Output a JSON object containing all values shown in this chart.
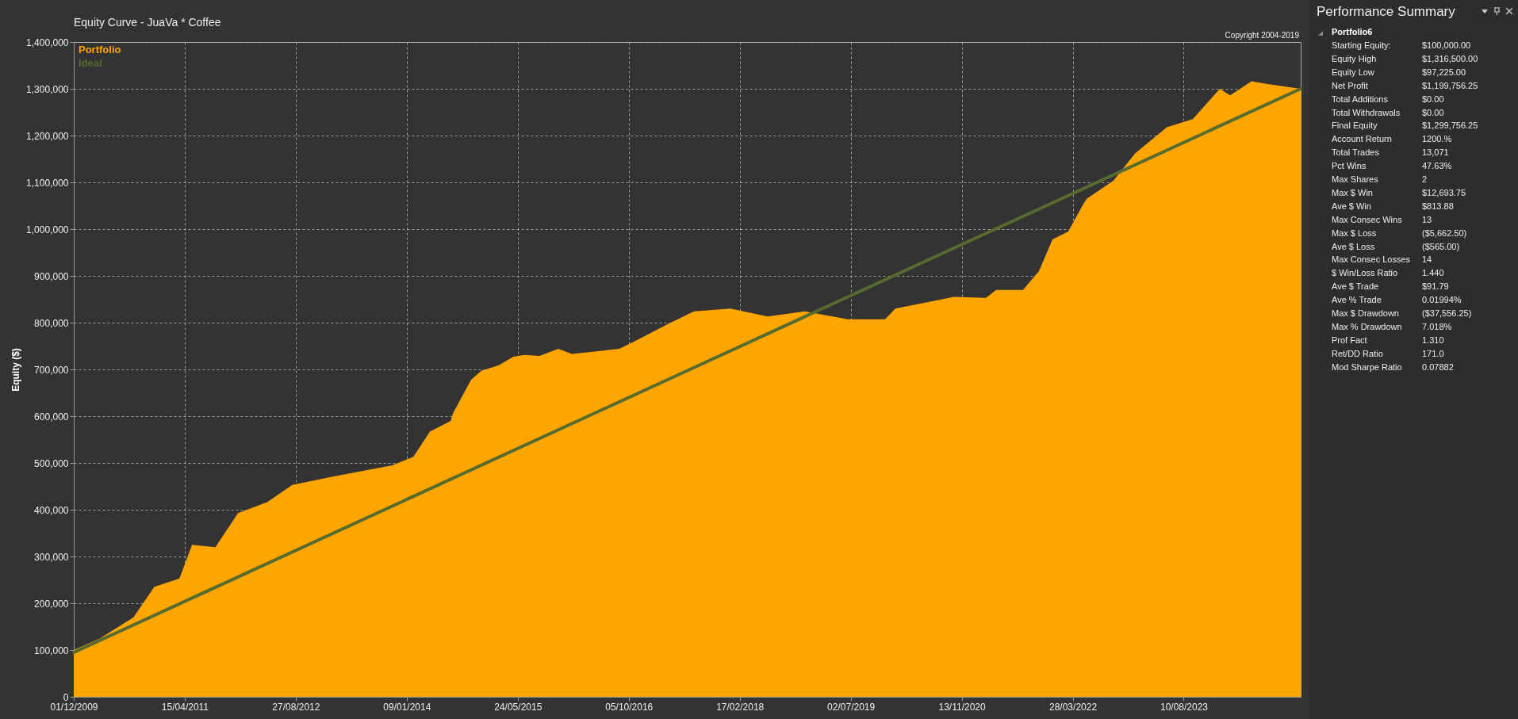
{
  "chart_data": [
    {
      "type": "area",
      "title": "Equity Curve - JuaVa * Coffee",
      "ylabel": "Equity ($)",
      "annotations": [
        "Copyright 2004-2019"
      ],
      "xlim": [
        "2009-12-01",
        "2025-01-18"
      ],
      "xticks": [
        {
          "value": "2009-12-01",
          "label": "01/12/2009"
        },
        {
          "value": "2011-04-15",
          "label": "15/04/2011"
        },
        {
          "value": "2012-08-27",
          "label": "27/08/2012"
        },
        {
          "value": "2014-01-09",
          "label": "09/01/2014"
        },
        {
          "value": "2015-05-24",
          "label": "24/05/2015"
        },
        {
          "value": "2016-10-05",
          "label": "05/10/2016"
        },
        {
          "value": "2018-02-17",
          "label": "17/02/2018"
        },
        {
          "value": "2019-07-02",
          "label": "02/07/2019"
        },
        {
          "value": "2020-11-13",
          "label": "13/11/2020"
        },
        {
          "value": "2022-03-28",
          "label": "28/03/2022"
        },
        {
          "value": "2023-08-10",
          "label": "10/08/2023"
        }
      ],
      "ylim": [
        0,
        1400000
      ],
      "yticks": [
        0,
        {
          "value": 100000,
          "label": "100,000"
        },
        {
          "value": 200000,
          "label": "200,000"
        },
        {
          "value": 300000,
          "label": "300,000"
        },
        {
          "value": 400000,
          "label": "400,000"
        },
        {
          "value": 500000,
          "label": "500,000"
        },
        {
          "value": 600000,
          "label": "600,000"
        },
        {
          "value": 700000,
          "label": "700,000"
        },
        {
          "value": 800000,
          "label": "800,000"
        },
        {
          "value": 900000,
          "label": "900,000"
        },
        {
          "value": 1000000,
          "label": "1,000,000"
        },
        {
          "value": 1100000,
          "label": "1,100,000"
        },
        {
          "value": 1200000,
          "label": "1,200,000"
        },
        {
          "value": 1300000,
          "label": "1,300,000"
        },
        {
          "value": 1400000,
          "label": "1,400,000"
        }
      ],
      "grid": true,
      "legend": "top left",
      "series": [
        {
          "name": "Portfolio",
          "type": "area",
          "color": "#ffa500",
          "x": [
            "2009-12-01",
            "2010-03-30",
            "2010-08-27",
            "2010-11-29",
            "2011-03-22",
            "2011-05-18",
            "2011-08-31",
            "2011-12-11",
            "2012-04-20",
            "2012-08-11",
            "2013-02-14",
            "2013-11-05",
            "2014-02-08",
            "2014-04-23",
            "2014-07-26",
            "2014-08-05",
            "2014-10-26",
            "2014-12-11",
            "2015-02-28",
            "2015-05-04",
            "2015-06-22",
            "2015-08-30",
            "2015-11-23",
            "2016-01-23",
            "2016-08-24",
            "2016-11-04",
            "2017-03-27",
            "2017-07-26",
            "2018-01-06",
            "2018-06-23",
            "2018-12-08",
            "2019-06-19",
            "2019-12-04",
            "2020-01-19",
            "2020-10-09",
            "2021-03-02",
            "2021-04-17",
            "2021-08-16",
            "2021-10-27",
            "2021-12-27",
            "2022-03-08",
            "2022-05-08",
            "2022-05-30",
            "2022-09-28",
            "2023-01-03",
            "2023-05-26",
            "2023-09-20",
            "2024-01-20",
            "2024-03-06",
            "2024-06-11",
            "2024-08-21",
            "2025-01-18"
          ],
          "values": [
            100000,
            125000,
            170000,
            235000,
            253000,
            325000,
            320000,
            393000,
            416000,
            453000,
            471000,
            495000,
            513000,
            567000,
            590000,
            606000,
            678000,
            697000,
            709000,
            727000,
            731000,
            729000,
            744000,
            733000,
            744000,
            761000,
            796000,
            824000,
            830000,
            813000,
            824000,
            807000,
            807000,
            830000,
            855000,
            853000,
            870000,
            870000,
            910000,
            978000,
            995000,
            1048000,
            1065000,
            1104000,
            1162000,
            1218000,
            1235000,
            1300000,
            1286000,
            1316000,
            1310000,
            1300000
          ]
        },
        {
          "name": "Ideal",
          "type": "line",
          "color": "#556b2f",
          "x": [
            "2009-12-01",
            "2017-06-01",
            "2025-01-18"
          ],
          "values": [
            95000,
            692000,
            1300000
          ]
        }
      ]
    },
    {
      "type": "other",
      "title": "Performance Summary",
      "subtitle": "Portfolio6",
      "annotations": [
        "Starting Equity:",
        "$100,000.00",
        "Equity High",
        "$1,316,500.00",
        "Equity Low",
        "$97,225.00",
        "Net Profit",
        "$1,199,756.25",
        "Total Additions",
        "$0.00",
        "Total Withdrawals",
        "$0.00",
        "Final Equity",
        "$1,299,756.25",
        "Account Return",
        "1200.%",
        "Total Trades",
        "13,071",
        "Pct Wins",
        "47.63%",
        "Max Shares",
        "2",
        "Max $ Win",
        "$12,693.75",
        "Ave $ Win",
        "$813.88",
        "Max Consec Wins",
        "13",
        "Max $ Loss",
        "($5,662.50)",
        "Ave $ Loss",
        "($565.00)",
        "Max Consec Losses",
        "14",
        "$ Win/Loss Ratio",
        "1.440",
        "Ave $ Trade",
        "$91.79",
        "Ave % Trade",
        "0.01994%",
        "Max $ Drawdown",
        "($37,556.25)",
        "Max % Drawdown",
        "7.018%",
        "Prof Fact",
        "1.310",
        "Ret/DD Ratio",
        "171.0",
        "Mod Sharpe Ratio",
        "0.07882"
      ]
    }
  ]
}
